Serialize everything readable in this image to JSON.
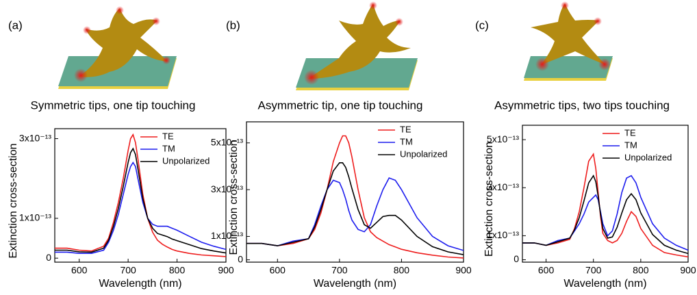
{
  "chart_data": [
    {
      "type": "line",
      "panel_label": "(a)",
      "title": "Symmetric tips, one tip touching",
      "xlabel": "Wavelength (nm)",
      "ylabel": "Extinction cross-section",
      "x": [
        550,
        575,
        600,
        625,
        650,
        660,
        670,
        680,
        690,
        700,
        705,
        710,
        715,
        720,
        730,
        740,
        750,
        760,
        770,
        780,
        790,
        800,
        825,
        850,
        875,
        900
      ],
      "xlim": [
        550,
        900
      ],
      "xticks": [
        600,
        700,
        800,
        900
      ],
      "ylim": [
        -1e-14,
        3.25e-13
      ],
      "yticks": [
        0,
        {
          "value": 1e-13,
          "label": "1x10⁻¹³"
        },
        {
          "value": 3e-13,
          "label": "3x10⁻¹³"
        }
      ],
      "legend": "upper right",
      "series": [
        {
          "name": "TE",
          "color": "#ee1c1c",
          "values": [
            2.5e-14,
            2.5e-14,
            2e-14,
            1.8e-14,
            3e-14,
            5e-14,
            9e-14,
            1.4e-13,
            2e-13,
            2.7e-13,
            3e-13,
            3.1e-13,
            2.9e-13,
            2.5e-13,
            1.6e-13,
            1e-13,
            6.5e-14,
            4.5e-14,
            3.5e-14,
            2.8e-14,
            2.2e-14,
            1.8e-14,
            1.2e-14,
            8e-15,
            6e-15,
            4e-15
          ]
        },
        {
          "name": "TM",
          "color": "#1c1cee",
          "values": [
            1.5e-14,
            1.5e-14,
            1.2e-14,
            1.2e-14,
            2e-14,
            4e-14,
            7e-14,
            1.1e-13,
            1.6e-13,
            2.1e-13,
            2.3e-13,
            2.4e-13,
            2.3e-13,
            2e-13,
            1.4e-13,
            1e-13,
            8.5e-14,
            8e-14,
            8e-14,
            8e-14,
            7.5e-14,
            7e-14,
            5.5e-14,
            4e-14,
            3e-14,
            2.2e-14
          ]
        },
        {
          "name": "Unpolarized",
          "color": "#000000",
          "values": [
            2e-14,
            2e-14,
            1.6e-14,
            1.5e-14,
            2.5e-14,
            4.5e-14,
            8e-14,
            1.25e-13,
            1.8e-13,
            2.4e-13,
            2.65e-13,
            2.75e-13,
            2.6e-13,
            2.25e-13,
            1.5e-13,
            1e-13,
            7.5e-14,
            6.2e-14,
            5.8e-14,
            5.4e-14,
            4.8e-14,
            4.4e-14,
            3.4e-14,
            2.4e-14,
            1.8e-14,
            1.3e-14
          ]
        }
      ]
    },
    {
      "type": "line",
      "panel_label": "(b)",
      "title": "Asymmetric tip, one tip touching",
      "xlabel": "Wavelength (nm)",
      "ylabel": "Extinction cross-section",
      "x": [
        550,
        575,
        600,
        625,
        650,
        660,
        670,
        680,
        690,
        700,
        705,
        710,
        715,
        720,
        730,
        740,
        750,
        760,
        770,
        780,
        790,
        800,
        825,
        850,
        875,
        900
      ],
      "xlim": [
        550,
        900
      ],
      "xticks": [
        600,
        700,
        800,
        900
      ],
      "ylim": [
        -1e-14,
        5.9e-13
      ],
      "yticks": [
        0,
        {
          "value": 1e-13,
          "label": "1x10⁻¹³"
        },
        {
          "value": 3e-13,
          "label": "3x10⁻¹³"
        },
        {
          "value": 5e-13,
          "label": "5x10⁻¹³"
        }
      ],
      "legend": "upper right",
      "series": [
        {
          "name": "TE",
          "color": "#ee1c1c",
          "values": [
            7e-14,
            7e-14,
            6e-14,
            7e-14,
            9e-14,
            1.3e-13,
            2e-13,
            3e-13,
            4.2e-13,
            5e-13,
            5.3e-13,
            5.3e-13,
            5e-13,
            4.4e-13,
            3e-13,
            1.8e-13,
            1.2e-13,
            9.5e-14,
            8e-14,
            6.5e-14,
            5.5e-14,
            4.5e-14,
            3e-14,
            2e-14,
            1.2e-14,
            8e-15
          ]
        },
        {
          "name": "TM",
          "color": "#1c1cee",
          "values": [
            7e-14,
            7e-14,
            6e-14,
            8e-14,
            9e-14,
            1.5e-13,
            2.3e-13,
            3e-13,
            3.4e-13,
            3.3e-13,
            3e-13,
            2.6e-13,
            2.1e-13,
            1.7e-13,
            1.3e-13,
            1.2e-13,
            1.5e-13,
            2.3e-13,
            3e-13,
            3.5e-13,
            3.4e-13,
            3e-13,
            1.8e-13,
            1e-13,
            6e-14,
            4e-14
          ]
        },
        {
          "name": "Unpolarized",
          "color": "#000000",
          "values": [
            7e-14,
            7e-14,
            6e-14,
            7.5e-14,
            9e-14,
            1.4e-13,
            2.15e-13,
            3e-13,
            3.8e-13,
            4.15e-13,
            4.15e-13,
            3.95e-13,
            3.55e-13,
            3.05e-13,
            2.15e-13,
            1.5e-13,
            1.35e-13,
            1.6e-13,
            1.85e-13,
            1.9e-13,
            1.9e-13,
            1.7e-13,
            1e-13,
            5.6e-14,
            3.4e-14,
            2.2e-14
          ]
        }
      ]
    },
    {
      "type": "line",
      "panel_label": "(c)",
      "title": "Asymmetric tips, two tips touching",
      "xlabel": "Wavelength (nm)",
      "ylabel": "Extinction cross-section",
      "x": [
        550,
        575,
        600,
        625,
        650,
        660,
        670,
        680,
        690,
        700,
        705,
        710,
        715,
        720,
        730,
        740,
        750,
        760,
        770,
        780,
        790,
        800,
        825,
        850,
        875,
        900
      ],
      "xlim": [
        550,
        900
      ],
      "xticks": [
        600,
        700,
        800,
        900
      ],
      "ylim": [
        -1e-14,
        5.6e-13
      ],
      "yticks": [
        0,
        {
          "value": 1e-13,
          "label": "1x10⁻¹³"
        },
        {
          "value": 3e-13,
          "label": "3x10⁻¹³"
        },
        {
          "value": 5e-13,
          "label": "5x10⁻¹³"
        }
      ],
      "legend": "upper right",
      "series": [
        {
          "name": "TE",
          "color": "#ee1c1c",
          "values": [
            7e-14,
            7e-14,
            6e-14,
            7e-14,
            8.5e-14,
            1.3e-13,
            2e-13,
            3e-13,
            4.1e-13,
            4.4e-13,
            3.8e-13,
            2.8e-13,
            1.8e-13,
            1.1e-13,
            8e-14,
            7e-14,
            8e-14,
            1.1e-13,
            1.6e-13,
            2e-13,
            1.8e-13,
            1.3e-13,
            6e-14,
            3e-14,
            2e-14,
            1.2e-14
          ]
        },
        {
          "name": "TM",
          "color": "#1c1cee",
          "values": [
            7e-14,
            7e-14,
            6e-14,
            8e-14,
            9e-14,
            1.2e-13,
            1.5e-13,
            1.9e-13,
            2.4e-13,
            2.6e-13,
            2.7e-13,
            2.5e-13,
            2e-13,
            1.5e-13,
            1e-13,
            1.2e-13,
            1.9e-13,
            2.8e-13,
            3.4e-13,
            3.5e-13,
            3.2e-13,
            2.6e-13,
            1.5e-13,
            9e-14,
            6e-14,
            4e-14
          ]
        },
        {
          "name": "Unpolarized",
          "color": "#000000",
          "values": [
            7e-14,
            7e-14,
            6e-14,
            7.5e-14,
            9e-14,
            1.25e-13,
            1.75e-13,
            2.45e-13,
            3.2e-13,
            3.5e-13,
            3.25e-13,
            2.65e-13,
            1.9e-13,
            1.3e-13,
            9e-14,
            9.5e-14,
            1.35e-13,
            1.95e-13,
            2.5e-13,
            2.75e-13,
            2.5e-13,
            1.95e-13,
            1.05e-13,
            6e-14,
            4e-14,
            2.6e-14
          ]
        }
      ]
    }
  ]
}
